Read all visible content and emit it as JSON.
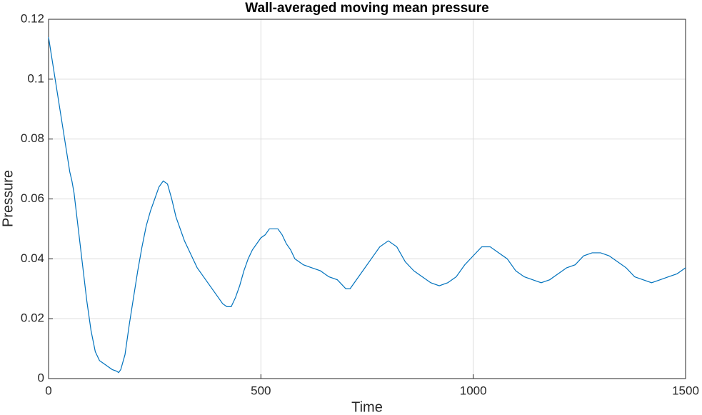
{
  "chart_data": {
    "type": "line",
    "title": "Wall-averaged moving mean pressure",
    "x_label": "Time",
    "y_label": "Pressure",
    "x": [
      0,
      10,
      20,
      30,
      40,
      50,
      55,
      60,
      70,
      80,
      90,
      100,
      110,
      120,
      130,
      140,
      150,
      160,
      165,
      170,
      180,
      190,
      200,
      210,
      220,
      230,
      240,
      250,
      260,
      270,
      280,
      290,
      300,
      310,
      320,
      330,
      340,
      350,
      360,
      370,
      380,
      390,
      400,
      410,
      420,
      430,
      440,
      450,
      460,
      470,
      480,
      490,
      500,
      510,
      520,
      530,
      540,
      550,
      560,
      570,
      580,
      590,
      600,
      620,
      640,
      660,
      680,
      700,
      710,
      720,
      740,
      760,
      780,
      800,
      820,
      840,
      860,
      880,
      900,
      920,
      940,
      960,
      980,
      1000,
      1020,
      1040,
      1060,
      1080,
      1100,
      1120,
      1140,
      1160,
      1180,
      1200,
      1220,
      1240,
      1260,
      1280,
      1300,
      1320,
      1340,
      1360,
      1380,
      1400,
      1420,
      1440,
      1460,
      1480,
      1500
    ],
    "series": [
      {
        "name": "Pressure",
        "color": "#0072bd",
        "values": [
          0.114,
          0.105,
          0.096,
          0.087,
          0.078,
          0.069,
          0.066,
          0.062,
          0.05,
          0.038,
          0.026,
          0.016,
          0.009,
          0.006,
          0.005,
          0.004,
          0.003,
          0.0025,
          0.002,
          0.003,
          0.008,
          0.018,
          0.027,
          0.036,
          0.044,
          0.051,
          0.056,
          0.06,
          0.064,
          0.066,
          0.065,
          0.06,
          0.054,
          0.05,
          0.046,
          0.043,
          0.04,
          0.037,
          0.035,
          0.033,
          0.031,
          0.029,
          0.027,
          0.025,
          0.024,
          0.024,
          0.027,
          0.031,
          0.036,
          0.04,
          0.043,
          0.045,
          0.047,
          0.048,
          0.05,
          0.05,
          0.05,
          0.048,
          0.045,
          0.043,
          0.04,
          0.039,
          0.038,
          0.037,
          0.036,
          0.034,
          0.033,
          0.03,
          0.03,
          0.032,
          0.036,
          0.04,
          0.044,
          0.046,
          0.044,
          0.039,
          0.036,
          0.034,
          0.032,
          0.031,
          0.032,
          0.034,
          0.038,
          0.041,
          0.044,
          0.044,
          0.042,
          0.04,
          0.036,
          0.034,
          0.033,
          0.032,
          0.033,
          0.035,
          0.037,
          0.038,
          0.041,
          0.042,
          0.042,
          0.041,
          0.039,
          0.037,
          0.034,
          0.033,
          0.032,
          0.033,
          0.034,
          0.035,
          0.037
        ]
      }
    ],
    "xlim": [
      0,
      1500
    ],
    "xticks": [
      0,
      500,
      1000,
      1500
    ],
    "ylim": [
      0,
      0.12
    ],
    "yticks": [
      0,
      0.02,
      0.04,
      0.06,
      0.08,
      0.1,
      0.12
    ],
    "grid": true
  }
}
